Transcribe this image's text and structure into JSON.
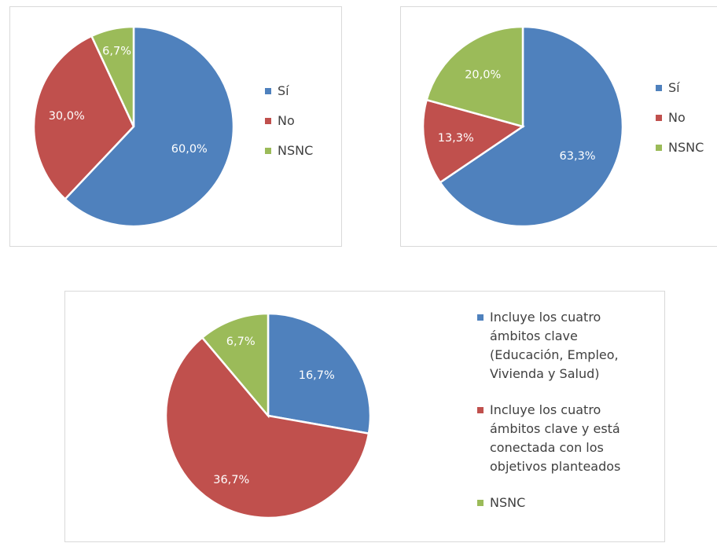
{
  "chart_data": [
    {
      "type": "pie",
      "categories": [
        "Sí",
        "No",
        "NSNC"
      ],
      "values": [
        60.0,
        30.0,
        6.7
      ],
      "data_labels": [
        "60,0%",
        "30,0%",
        "6,7%"
      ],
      "colors": [
        "#4f81bd",
        "#c0504d",
        "#9bbb59"
      ],
      "legend": {
        "position": "right",
        "entries": [
          [
            "Sí"
          ],
          [
            "No"
          ],
          [
            "NSNC"
          ]
        ]
      }
    },
    {
      "type": "pie",
      "categories": [
        "Sí",
        "No",
        "NSNC"
      ],
      "values": [
        63.3,
        13.3,
        20.0
      ],
      "data_labels": [
        "63,3%",
        "13,3%",
        "20,0%"
      ],
      "colors": [
        "#4f81bd",
        "#c0504d",
        "#9bbb59"
      ],
      "legend": {
        "position": "right",
        "entries": [
          [
            "Sí"
          ],
          [
            "No"
          ],
          [
            "NSNC"
          ]
        ]
      }
    },
    {
      "type": "pie",
      "categories": [
        "Incluye los cuatro ámbitos clave (Educación, Empleo, Vivienda y Salud)",
        "Incluye los cuatro ámbitos clave y está conectada con los objetivos planteados",
        "NSNC"
      ],
      "values": [
        16.7,
        36.7,
        6.7
      ],
      "data_labels": [
        "16,7%",
        "36,7%",
        "6,7%"
      ],
      "colors": [
        "#4f81bd",
        "#c0504d",
        "#9bbb59"
      ],
      "legend": {
        "position": "right",
        "entries": [
          [
            "Incluye los cuatro",
            "ámbitos clave",
            "(Educación, Empleo,",
            "Vivienda y Salud)"
          ],
          [
            "Incluye los cuatro",
            "ámbitos clave y está",
            "conectada con los",
            "objetivos planteados"
          ],
          [
            "NSNC"
          ]
        ]
      }
    }
  ]
}
